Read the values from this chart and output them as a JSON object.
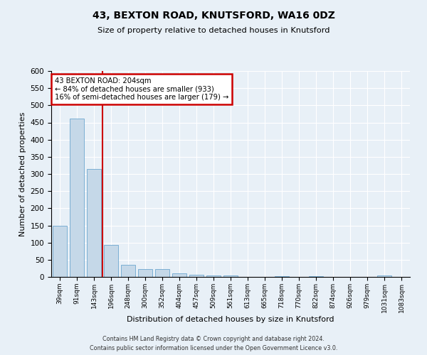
{
  "title": "43, BEXTON ROAD, KNUTSFORD, WA16 0DZ",
  "subtitle": "Size of property relative to detached houses in Knutsford",
  "xlabel": "Distribution of detached houses by size in Knutsford",
  "ylabel": "Number of detached properties",
  "bar_labels": [
    "39sqm",
    "91sqm",
    "143sqm",
    "196sqm",
    "248sqm",
    "300sqm",
    "352sqm",
    "404sqm",
    "457sqm",
    "509sqm",
    "561sqm",
    "613sqm",
    "665sqm",
    "718sqm",
    "770sqm",
    "822sqm",
    "874sqm",
    "926sqm",
    "979sqm",
    "1031sqm",
    "1083sqm"
  ],
  "bar_values": [
    148,
    462,
    314,
    93,
    36,
    22,
    22,
    11,
    7,
    5,
    4,
    0,
    0,
    3,
    0,
    3,
    0,
    0,
    0,
    4,
    0
  ],
  "bar_color": "#c5d8e8",
  "bar_edgecolor": "#7bafd4",
  "property_line_idx": 3,
  "property_line_color": "#cc0000",
  "ylim": [
    0,
    600
  ],
  "yticks": [
    0,
    50,
    100,
    150,
    200,
    250,
    300,
    350,
    400,
    450,
    500,
    550,
    600
  ],
  "annotation_title": "43 BEXTON ROAD: 204sqm",
  "annotation_line1": "← 84% of detached houses are smaller (933)",
  "annotation_line2": "16% of semi-detached houses are larger (179) →",
  "footer1": "Contains HM Land Registry data © Crown copyright and database right 2024.",
  "footer2": "Contains public sector information licensed under the Open Government Licence v3.0.",
  "bg_color": "#e8f0f7",
  "plot_bg_color": "#e8f0f7"
}
